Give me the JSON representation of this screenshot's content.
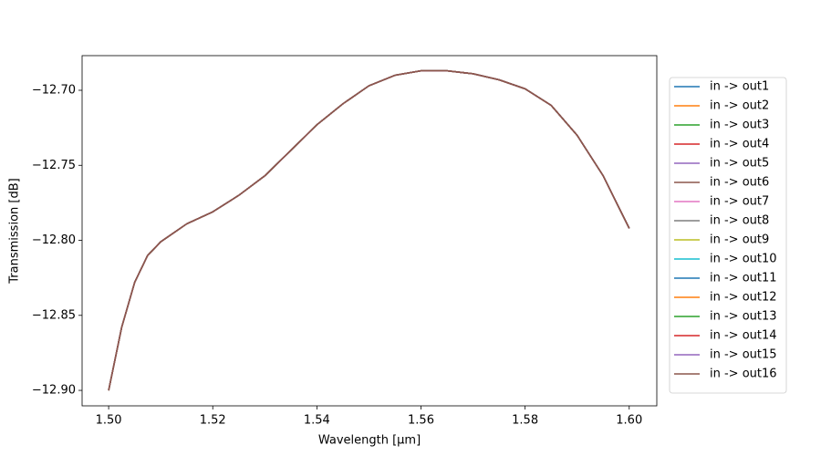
{
  "chart_data": {
    "type": "line",
    "xlabel": "Wavelength [μm]",
    "ylabel": "Transmission [dB]",
    "x": [
      1.5,
      1.5025,
      1.505,
      1.5075,
      1.51,
      1.515,
      1.52,
      1.525,
      1.53,
      1.535,
      1.54,
      1.545,
      1.55,
      1.555,
      1.56,
      1.565,
      1.57,
      1.575,
      1.58,
      1.585,
      1.59,
      1.595,
      1.6
    ],
    "series": [
      {
        "name": "in -> out1",
        "color": "#1f77b4",
        "values": [
          -12.9,
          -12.858,
          -12.828,
          -12.81,
          -12.801,
          -12.789,
          -12.781,
          -12.77,
          -12.757,
          -12.74,
          -12.723,
          -12.709,
          -12.697,
          -12.69,
          -12.687,
          -12.687,
          -12.689,
          -12.693,
          -12.699,
          -12.71,
          -12.73,
          -12.757,
          -12.792
        ]
      },
      {
        "name": "in -> out2",
        "color": "#ff7f0e",
        "values": [
          -12.9,
          -12.858,
          -12.828,
          -12.81,
          -12.801,
          -12.789,
          -12.781,
          -12.77,
          -12.757,
          -12.74,
          -12.723,
          -12.709,
          -12.697,
          -12.69,
          -12.687,
          -12.687,
          -12.689,
          -12.693,
          -12.699,
          -12.71,
          -12.73,
          -12.757,
          -12.792
        ]
      },
      {
        "name": "in -> out3",
        "color": "#2ca02c",
        "values": [
          -12.9,
          -12.858,
          -12.828,
          -12.81,
          -12.801,
          -12.789,
          -12.781,
          -12.77,
          -12.757,
          -12.74,
          -12.723,
          -12.709,
          -12.697,
          -12.69,
          -12.687,
          -12.687,
          -12.689,
          -12.693,
          -12.699,
          -12.71,
          -12.73,
          -12.757,
          -12.792
        ]
      },
      {
        "name": "in -> out4",
        "color": "#d62728",
        "values": [
          -12.9,
          -12.858,
          -12.828,
          -12.81,
          -12.801,
          -12.789,
          -12.781,
          -12.77,
          -12.757,
          -12.74,
          -12.723,
          -12.709,
          -12.697,
          -12.69,
          -12.687,
          -12.687,
          -12.689,
          -12.693,
          -12.699,
          -12.71,
          -12.73,
          -12.757,
          -12.792
        ]
      },
      {
        "name": "in -> out5",
        "color": "#9467bd",
        "values": [
          -12.9,
          -12.858,
          -12.828,
          -12.81,
          -12.801,
          -12.789,
          -12.781,
          -12.77,
          -12.757,
          -12.74,
          -12.723,
          -12.709,
          -12.697,
          -12.69,
          -12.687,
          -12.687,
          -12.689,
          -12.693,
          -12.699,
          -12.71,
          -12.73,
          -12.757,
          -12.792
        ]
      },
      {
        "name": "in -> out6",
        "color": "#8c564b",
        "values": [
          -12.9,
          -12.858,
          -12.828,
          -12.81,
          -12.801,
          -12.789,
          -12.781,
          -12.77,
          -12.757,
          -12.74,
          -12.723,
          -12.709,
          -12.697,
          -12.69,
          -12.687,
          -12.687,
          -12.689,
          -12.693,
          -12.699,
          -12.71,
          -12.73,
          -12.757,
          -12.792
        ]
      },
      {
        "name": "in -> out7",
        "color": "#e377c2",
        "values": [
          -12.9,
          -12.858,
          -12.828,
          -12.81,
          -12.801,
          -12.789,
          -12.781,
          -12.77,
          -12.757,
          -12.74,
          -12.723,
          -12.709,
          -12.697,
          -12.69,
          -12.687,
          -12.687,
          -12.689,
          -12.693,
          -12.699,
          -12.71,
          -12.73,
          -12.757,
          -12.792
        ]
      },
      {
        "name": "in -> out8",
        "color": "#7f7f7f",
        "values": [
          -12.9,
          -12.858,
          -12.828,
          -12.81,
          -12.801,
          -12.789,
          -12.781,
          -12.77,
          -12.757,
          -12.74,
          -12.723,
          -12.709,
          -12.697,
          -12.69,
          -12.687,
          -12.687,
          -12.689,
          -12.693,
          -12.699,
          -12.71,
          -12.73,
          -12.757,
          -12.792
        ]
      },
      {
        "name": "in -> out9",
        "color": "#bcbd22",
        "values": [
          -12.9,
          -12.858,
          -12.828,
          -12.81,
          -12.801,
          -12.789,
          -12.781,
          -12.77,
          -12.757,
          -12.74,
          -12.723,
          -12.709,
          -12.697,
          -12.69,
          -12.687,
          -12.687,
          -12.689,
          -12.693,
          -12.699,
          -12.71,
          -12.73,
          -12.757,
          -12.792
        ]
      },
      {
        "name": "in -> out10",
        "color": "#17becf",
        "values": [
          -12.9,
          -12.858,
          -12.828,
          -12.81,
          -12.801,
          -12.789,
          -12.781,
          -12.77,
          -12.757,
          -12.74,
          -12.723,
          -12.709,
          -12.697,
          -12.69,
          -12.687,
          -12.687,
          -12.689,
          -12.693,
          -12.699,
          -12.71,
          -12.73,
          -12.757,
          -12.792
        ]
      },
      {
        "name": "in -> out11",
        "color": "#1f77b4",
        "values": [
          -12.9,
          -12.858,
          -12.828,
          -12.81,
          -12.801,
          -12.789,
          -12.781,
          -12.77,
          -12.757,
          -12.74,
          -12.723,
          -12.709,
          -12.697,
          -12.69,
          -12.687,
          -12.687,
          -12.689,
          -12.693,
          -12.699,
          -12.71,
          -12.73,
          -12.757,
          -12.792
        ]
      },
      {
        "name": "in -> out12",
        "color": "#ff7f0e",
        "values": [
          -12.9,
          -12.858,
          -12.828,
          -12.81,
          -12.801,
          -12.789,
          -12.781,
          -12.77,
          -12.757,
          -12.74,
          -12.723,
          -12.709,
          -12.697,
          -12.69,
          -12.687,
          -12.687,
          -12.689,
          -12.693,
          -12.699,
          -12.71,
          -12.73,
          -12.757,
          -12.792
        ]
      },
      {
        "name": "in -> out13",
        "color": "#2ca02c",
        "values": [
          -12.9,
          -12.858,
          -12.828,
          -12.81,
          -12.801,
          -12.789,
          -12.781,
          -12.77,
          -12.757,
          -12.74,
          -12.723,
          -12.709,
          -12.697,
          -12.69,
          -12.687,
          -12.687,
          -12.689,
          -12.693,
          -12.699,
          -12.71,
          -12.73,
          -12.757,
          -12.792
        ]
      },
      {
        "name": "in -> out14",
        "color": "#d62728",
        "values": [
          -12.9,
          -12.858,
          -12.828,
          -12.81,
          -12.801,
          -12.789,
          -12.781,
          -12.77,
          -12.757,
          -12.74,
          -12.723,
          -12.709,
          -12.697,
          -12.69,
          -12.687,
          -12.687,
          -12.689,
          -12.693,
          -12.699,
          -12.71,
          -12.73,
          -12.757,
          -12.792
        ]
      },
      {
        "name": "in -> out15",
        "color": "#9467bd",
        "values": [
          -12.9,
          -12.858,
          -12.828,
          -12.81,
          -12.801,
          -12.789,
          -12.781,
          -12.77,
          -12.757,
          -12.74,
          -12.723,
          -12.709,
          -12.697,
          -12.69,
          -12.687,
          -12.687,
          -12.689,
          -12.693,
          -12.699,
          -12.71,
          -12.73,
          -12.757,
          -12.792
        ]
      },
      {
        "name": "in -> out16",
        "color": "#8c564b",
        "values": [
          -12.9,
          -12.858,
          -12.828,
          -12.81,
          -12.801,
          -12.789,
          -12.781,
          -12.77,
          -12.757,
          -12.74,
          -12.723,
          -12.709,
          -12.697,
          -12.69,
          -12.687,
          -12.687,
          -12.689,
          -12.693,
          -12.699,
          -12.71,
          -12.73,
          -12.757,
          -12.792
        ]
      }
    ],
    "xlim": [
      1.4949,
      1.6053
    ],
    "ylim": [
      -12.9103,
      -12.6769
    ],
    "xticks": [
      {
        "value": 1.5,
        "label": "1.50"
      },
      {
        "value": 1.52,
        "label": "1.52"
      },
      {
        "value": 1.54,
        "label": "1.54"
      },
      {
        "value": 1.56,
        "label": "1.56"
      },
      {
        "value": 1.58,
        "label": "1.58"
      },
      {
        "value": 1.6,
        "label": "1.60"
      }
    ],
    "yticks": [
      {
        "value": -12.9,
        "label": "−12.90"
      },
      {
        "value": -12.85,
        "label": "−12.85"
      },
      {
        "value": -12.8,
        "label": "−12.80"
      },
      {
        "value": -12.75,
        "label": "−12.75"
      },
      {
        "value": -12.7,
        "label": "−12.70"
      }
    ],
    "grid": false,
    "legend": "outside right"
  }
}
